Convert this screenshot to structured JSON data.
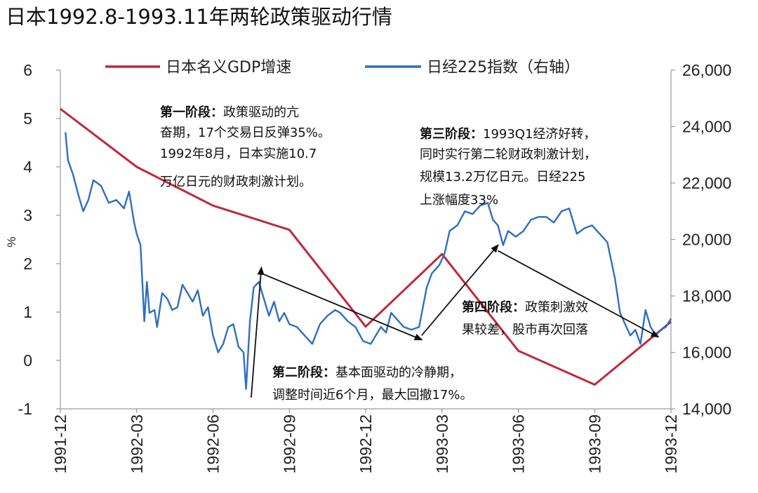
{
  "chart_data": {
    "type": "line",
    "title": "日本1992.8-1993.11年两轮政策驱动行情",
    "ylabel": "%",
    "ylim": [
      -1,
      6
    ],
    "y_ticks": [
      "6",
      "5",
      "4",
      "3",
      "2",
      "1",
      "0",
      "-1"
    ],
    "y2lim": [
      14000,
      26000
    ],
    "y2_ticks": [
      "26,000",
      "24,000",
      "22,000",
      "20,000",
      "18,000",
      "16,000",
      "14,000"
    ],
    "x_ticks": [
      "1991-12",
      "1992-03",
      "1992-06",
      "1992-09",
      "1992-12",
      "1993-03",
      "1993-06",
      "1993-09",
      "1993-12"
    ],
    "legend_position": "top",
    "colors": {
      "gdp": "#c0283c",
      "nikkei": "#2e6fc0",
      "arrow": "#111111"
    },
    "series": [
      {
        "name": "日本名义GDP增速",
        "axis": "left",
        "x": [
          0,
          3,
          6,
          9,
          12,
          15,
          18,
          21,
          24
        ],
        "values": [
          5.2,
          4.0,
          3.2,
          2.7,
          0.7,
          2.2,
          0.2,
          -0.5,
          0.8
        ]
      },
      {
        "name": "日经225指数（右轴）",
        "axis": "right",
        "x": [
          0.2,
          0.3,
          0.5,
          0.7,
          0.9,
          1.1,
          1.3,
          1.6,
          1.9,
          2.2,
          2.5,
          2.7,
          2.9,
          3.0,
          3.15,
          3.3,
          3.4,
          3.5,
          3.7,
          3.8,
          4.0,
          4.2,
          4.4,
          4.6,
          4.8,
          5.0,
          5.2,
          5.4,
          5.6,
          5.8,
          6.0,
          6.2,
          6.4,
          6.6,
          6.8,
          7.0,
          7.2,
          7.3,
          7.45,
          7.6,
          7.7,
          7.8,
          8.0,
          8.2,
          8.4,
          8.6,
          8.8,
          9.0,
          9.3,
          9.6,
          9.9,
          10.2,
          10.5,
          10.8,
          11.0,
          11.3,
          11.6,
          11.9,
          12.2,
          12.4,
          12.6,
          12.8,
          13.0,
          13.2,
          13.5,
          13.8,
          14.1,
          14.4,
          14.6,
          14.9,
          15.1,
          15.3,
          15.6,
          15.9,
          16.2,
          16.5,
          16.8,
          17.0,
          17.2,
          17.4,
          17.6,
          17.9,
          18.2,
          18.5,
          18.8,
          19.1,
          19.4,
          19.7,
          20.0,
          20.3,
          20.6,
          20.9,
          21.2,
          21.5,
          21.8,
          22.0,
          22.2,
          22.4,
          22.6,
          22.8,
          23.0,
          23.2,
          23.4,
          23.6,
          23.8,
          24.0
        ],
        "values": [
          23800,
          22800,
          22300,
          21600,
          21000,
          21400,
          22100,
          21900,
          21300,
          21400,
          21100,
          21700,
          20600,
          20200,
          19800,
          17100,
          18500,
          17400,
          17500,
          16900,
          18100,
          17900,
          17500,
          17600,
          18400,
          18100,
          17800,
          18200,
          17300,
          17600,
          16600,
          16000,
          16300,
          16900,
          17000,
          16200,
          16000,
          14700,
          17100,
          18300,
          18400,
          18500,
          17900,
          17300,
          17800,
          17100,
          17400,
          17000,
          16900,
          16600,
          16300,
          17000,
          17300,
          17500,
          17400,
          17100,
          16900,
          16400,
          16300,
          16600,
          16900,
          16700,
          17400,
          17200,
          16900,
          16800,
          16900,
          18300,
          18800,
          19100,
          19500,
          20300,
          20500,
          21000,
          20900,
          21200,
          21300,
          20700,
          20500,
          19800,
          20300,
          20100,
          20300,
          20700,
          20800,
          20800,
          20600,
          21000,
          21100,
          20200,
          20400,
          20500,
          20200,
          19900,
          18600,
          17400,
          17000,
          16600,
          16800,
          16300,
          17500,
          16900,
          16600,
          16800,
          16900,
          17200
        ]
      }
    ],
    "arrows": [
      {
        "from": [
          7.5,
          14400
        ],
        "to": [
          7.9,
          19000
        ]
      },
      {
        "from": [
          7.9,
          18800
        ],
        "to": [
          14.2,
          16450
        ]
      },
      {
        "from": [
          14.2,
          16600
        ],
        "to": [
          17.2,
          19800
        ]
      },
      {
        "from": [
          17.2,
          19600
        ],
        "to": [
          23.5,
          16550
        ]
      }
    ],
    "annotations": [
      {
        "lines": [
          {
            "bold": "第一阶段：",
            "text": "政策驱动的亢"
          },
          {
            "bold": "",
            "text": "奋期，17个交易日反弹35%。"
          },
          {
            "bold": "",
            "text": "1992年8月，日本实施10.7"
          },
          {
            "bold": "",
            "text": "万亿日元的财政刺激计划。"
          }
        ]
      },
      {
        "lines": [
          {
            "bold": "第二阶段：",
            "text": "基本面驱动的冷静期，"
          },
          {
            "bold": "",
            "text": "调整时间近6个月，最大回撤17%。"
          }
        ]
      },
      {
        "lines": [
          {
            "bold": "第三阶段：",
            "text": "1993Q1经济好转，"
          },
          {
            "bold": "",
            "text": "同时实行第二轮财政刺激计划，"
          },
          {
            "bold": "",
            "text": "规模13.2万亿日元。日经225"
          },
          {
            "bold": "",
            "text": "上涨幅度33%"
          }
        ]
      },
      {
        "lines": [
          {
            "bold": "第四阶段：",
            "text": "政策刺激效"
          },
          {
            "bold": "",
            "text": "果较差，股市再次回落"
          }
        ]
      }
    ]
  }
}
